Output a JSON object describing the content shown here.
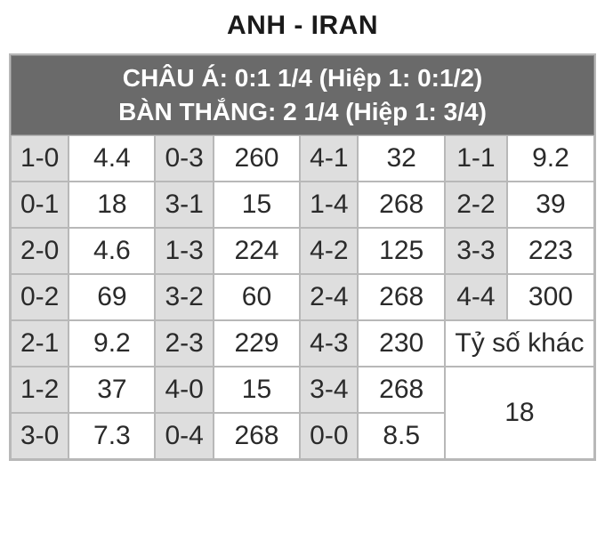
{
  "title": "ANH - IRAN",
  "header": {
    "line1": "CHÂU Á: 0:1 1/4 (Hiệp 1: 0:1/2)",
    "line2": "BÀN THẮNG: 2 1/4 (Hiệp 1: 3/4)"
  },
  "rows": [
    {
      "c1": "1-0",
      "c2": "4.4",
      "c3": "0-3",
      "c4": "260",
      "c5": "4-1",
      "c6": "32",
      "c7": "1-1",
      "c8": "9.2"
    },
    {
      "c1": "0-1",
      "c2": "18",
      "c3": "3-1",
      "c4": "15",
      "c5": "1-4",
      "c6": "268",
      "c7": "2-2",
      "c8": "39"
    },
    {
      "c1": "2-0",
      "c2": "4.6",
      "c3": "1-3",
      "c4": "224",
      "c5": "4-2",
      "c6": "125",
      "c7": "3-3",
      "c8": "223"
    },
    {
      "c1": "0-2",
      "c2": "69",
      "c3": "3-2",
      "c4": "60",
      "c5": "2-4",
      "c6": "268",
      "c7": "4-4",
      "c8": "300"
    },
    {
      "c1": "2-1",
      "c2": "9.2",
      "c3": "2-3",
      "c4": "229",
      "c5": "4-3",
      "c6": "230",
      "merged_label": "Tỷ số khác"
    },
    {
      "c1": "1-2",
      "c2": "37",
      "c3": "4-0",
      "c4": "15",
      "c5": "3-4",
      "c6": "268",
      "merged_value": "18"
    },
    {
      "c1": "3-0",
      "c2": "7.3",
      "c3": "0-4",
      "c4": "268",
      "c5": "0-0",
      "c6": "8.5"
    }
  ],
  "colors": {
    "header_bg": "#6a6a6a",
    "header_text": "#ffffff",
    "shade_bg": "#dedede",
    "border": "#b8b8b8",
    "text": "#2a2a2a"
  }
}
